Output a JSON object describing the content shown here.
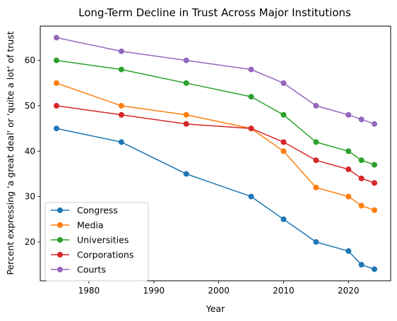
{
  "chart_data": {
    "type": "line",
    "title": "Long-Term Decline in Trust Across Major Institutions",
    "xlabel": "Year",
    "ylabel": "Percent expressing 'a great deal' or 'quite a lot' of trust",
    "xlim": [
      1972.5,
      2026.5
    ],
    "ylim": [
      11.45,
      67.55
    ],
    "xticks": [
      1980,
      1990,
      2000,
      2010,
      2020
    ],
    "yticks": [
      20,
      30,
      40,
      50,
      60
    ],
    "grid": false,
    "legend_position": "lower-left",
    "x": [
      1975,
      1985,
      1995,
      2005,
      2010,
      2015,
      2020,
      2022,
      2024
    ],
    "series": [
      {
        "name": "Congress",
        "color": "#1f77b4",
        "values": [
          45,
          42,
          35,
          30,
          25,
          20,
          18,
          15,
          14
        ]
      },
      {
        "name": "Media",
        "color": "#ff7f0e",
        "values": [
          55,
          50,
          48,
          45,
          40,
          32,
          30,
          28,
          27
        ]
      },
      {
        "name": "Universities",
        "color": "#2ca02c",
        "values": [
          60,
          58,
          55,
          52,
          48,
          42,
          40,
          38,
          37
        ]
      },
      {
        "name": "Corporations",
        "color": "#d62728",
        "values": [
          50,
          48,
          46,
          45,
          42,
          38,
          36,
          34,
          33
        ]
      },
      {
        "name": "Courts",
        "color": "#9467bd",
        "values": [
          65,
          62,
          60,
          58,
          55,
          50,
          48,
          47,
          46
        ]
      }
    ]
  }
}
